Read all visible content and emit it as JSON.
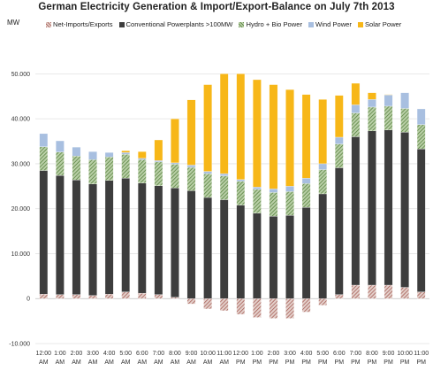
{
  "title": "German Electricity Generation & Import/Export-Balance on July 7th 2013",
  "unit_label": "MW",
  "legend": [
    {
      "name": "Net-Imports/Exports",
      "color": "#c9a69f",
      "pattern": "hatch"
    },
    {
      "name": "Conventional Powerplants >100MW",
      "color": "#3d3d3d",
      "pattern": "solid"
    },
    {
      "name": "Hydro + Bio Power",
      "color": "#6b8e4e",
      "pattern": "hatch"
    },
    {
      "name": "Wind Power",
      "color": "#a8bfe0",
      "pattern": "solid"
    },
    {
      "name": "Solar Power",
      "color": "#f7b718",
      "pattern": "solid"
    }
  ],
  "chart_data": {
    "type": "bar",
    "stacked": true,
    "title": "German Electricity Generation & Import/Export-Balance on July 7th 2013",
    "ylabel": "MW",
    "ylim": [
      -10000,
      55000
    ],
    "yticks": [
      "-10.000",
      "0",
      "10.000",
      "20.000",
      "30.000",
      "40.000",
      "50.000"
    ],
    "grid": true,
    "legend_position": "top",
    "categories": [
      [
        "12:00",
        "AM"
      ],
      [
        "1:00",
        "AM"
      ],
      [
        "2:00",
        "AM"
      ],
      [
        "3:00",
        "AM"
      ],
      [
        "4:00",
        "AM"
      ],
      [
        "5:00",
        "AM"
      ],
      [
        "6:00",
        "AM"
      ],
      [
        "7:00",
        "AM"
      ],
      [
        "8:00",
        "AM"
      ],
      [
        "9:00",
        "AM"
      ],
      [
        "10:00",
        "AM"
      ],
      [
        "11:00",
        "AM"
      ],
      [
        "12:00",
        "PM"
      ],
      [
        "1:00",
        "PM"
      ],
      [
        "2:00",
        "PM"
      ],
      [
        "3:00",
        "PM"
      ],
      [
        "4:00",
        "PM"
      ],
      [
        "5:00",
        "PM"
      ],
      [
        "6:00",
        "PM"
      ],
      [
        "7:00",
        "PM"
      ],
      [
        "8:00",
        "PM"
      ],
      [
        "9:00",
        "PM"
      ],
      [
        "10:00",
        "PM"
      ],
      [
        "11:00",
        "PM"
      ]
    ],
    "series": [
      {
        "name": "Net-Imports/Exports",
        "color": "#c9a69f",
        "values": [
          1000,
          900,
          900,
          700,
          1000,
          1500,
          1200,
          900,
          300,
          -1200,
          -2300,
          -2700,
          -3500,
          -4200,
          -4400,
          -4400,
          -3000,
          -1500,
          900,
          3000,
          3000,
          3000,
          2500,
          1500
        ]
      },
      {
        "name": "Conventional Powerplants >100MW",
        "color": "#3d3d3d",
        "values": [
          27500,
          26500,
          25500,
          24800,
          25300,
          25300,
          24500,
          24200,
          24300,
          24000,
          22500,
          22000,
          20800,
          19000,
          18300,
          18500,
          20300,
          23300,
          28200,
          33000,
          34300,
          34500,
          34500,
          31800
        ]
      },
      {
        "name": "Hydro + Bio Power",
        "color": "#6b8e4e",
        "values": [
          5300,
          5200,
          5300,
          5400,
          5200,
          5300,
          5200,
          5300,
          5300,
          5200,
          5300,
          5300,
          5300,
          5300,
          5300,
          5300,
          5300,
          5400,
          5300,
          5300,
          5300,
          5300,
          5300,
          5400
        ]
      },
      {
        "name": "Wind Power",
        "color": "#a8bfe0",
        "values": [
          2900,
          2500,
          2000,
          1800,
          1000,
          400,
          300,
          300,
          300,
          500,
          500,
          500,
          400,
          500,
          800,
          1200,
          1200,
          1300,
          1500,
          1800,
          1700,
          2500,
          3500,
          3500
        ]
      },
      {
        "name": "Solar Power",
        "color": "#f7b718",
        "values": [
          0,
          0,
          0,
          0,
          0,
          400,
          1500,
          4600,
          9800,
          14500,
          19300,
          22200,
          23500,
          23900,
          23200,
          21500,
          18600,
          14300,
          9300,
          4800,
          1500,
          100,
          0,
          0
        ]
      }
    ]
  }
}
